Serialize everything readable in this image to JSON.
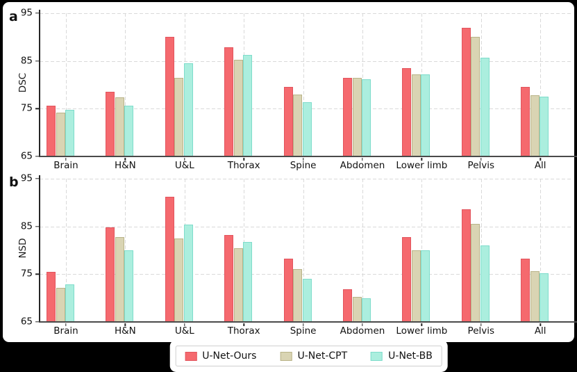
{
  "chart_data": [
    {
      "type": "bar",
      "panel_label": "a",
      "ylabel": "DSC",
      "ylim": [
        65,
        95.8
      ],
      "yticks": [
        65,
        75,
        85,
        95
      ],
      "grid": "dashed-both-axes",
      "legend_position": "bottom-center-shared",
      "categories": [
        "Brain",
        "H&N",
        "U&L",
        "Thorax",
        "Spine",
        "Abdomen",
        "Lower limb",
        "Pelvis",
        "All"
      ],
      "series": [
        {
          "name": "U-Net-Ours",
          "color": "#f5696e",
          "edge": "#e2545d",
          "values": [
            75.7,
            78.6,
            90.1,
            87.8,
            79.6,
            81.5,
            83.5,
            91.9,
            79.6
          ]
        },
        {
          "name": "U-Net-CPT",
          "color": "#d9d4b3",
          "edge": "#b9b388",
          "values": [
            74.2,
            77.4,
            81.4,
            85.2,
            78.0,
            81.5,
            82.2,
            90.0,
            77.8
          ]
        },
        {
          "name": "U-Net-BB",
          "color": "#abeede",
          "edge": "#7edccb",
          "values": [
            74.8,
            75.7,
            84.5,
            86.2,
            76.3,
            81.1,
            82.2,
            85.7,
            77.5
          ]
        }
      ]
    },
    {
      "type": "bar",
      "panel_label": "b",
      "ylabel": "NSD",
      "ylim": [
        65,
        95.8
      ],
      "yticks": [
        65,
        75,
        85,
        95
      ],
      "grid": "dashed-both-axes",
      "legend_position": "bottom-center-shared",
      "categories": [
        "Brain",
        "H&N",
        "U&L",
        "Thorax",
        "Spine",
        "Abdomen",
        "Lower limb",
        "Pelvis",
        "All"
      ],
      "series": [
        {
          "name": "U-Net-Ours",
          "color": "#f5696e",
          "edge": "#e2545d",
          "values": [
            75.5,
            84.8,
            91.2,
            83.2,
            78.2,
            71.8,
            82.7,
            88.6,
            78.3
          ]
        },
        {
          "name": "U-Net-CPT",
          "color": "#d9d4b3",
          "edge": "#b9b388",
          "values": [
            72.1,
            82.8,
            82.5,
            80.5,
            76.0,
            70.3,
            80.0,
            85.5,
            75.7
          ]
        },
        {
          "name": "U-Net-BB",
          "color": "#abeede",
          "edge": "#7edccb",
          "values": [
            72.8,
            80.0,
            85.4,
            81.7,
            74.0,
            70.0,
            80.0,
            81.0,
            75.2
          ]
        }
      ]
    }
  ],
  "legend": {
    "items": [
      {
        "label": "U-Net-Ours",
        "color": "#f5696e",
        "edge": "#e2545d"
      },
      {
        "label": "U-Net-CPT",
        "color": "#d9d4b3",
        "edge": "#b9b388"
      },
      {
        "label": "U-Net-BB",
        "color": "#abeede",
        "edge": "#7edccb"
      }
    ]
  },
  "colors": {
    "page_background": "#000000",
    "figure_background": "#ffffff",
    "gridline": "#d9d9d9",
    "axis": "#3c3c3c",
    "text": "#111111"
  }
}
